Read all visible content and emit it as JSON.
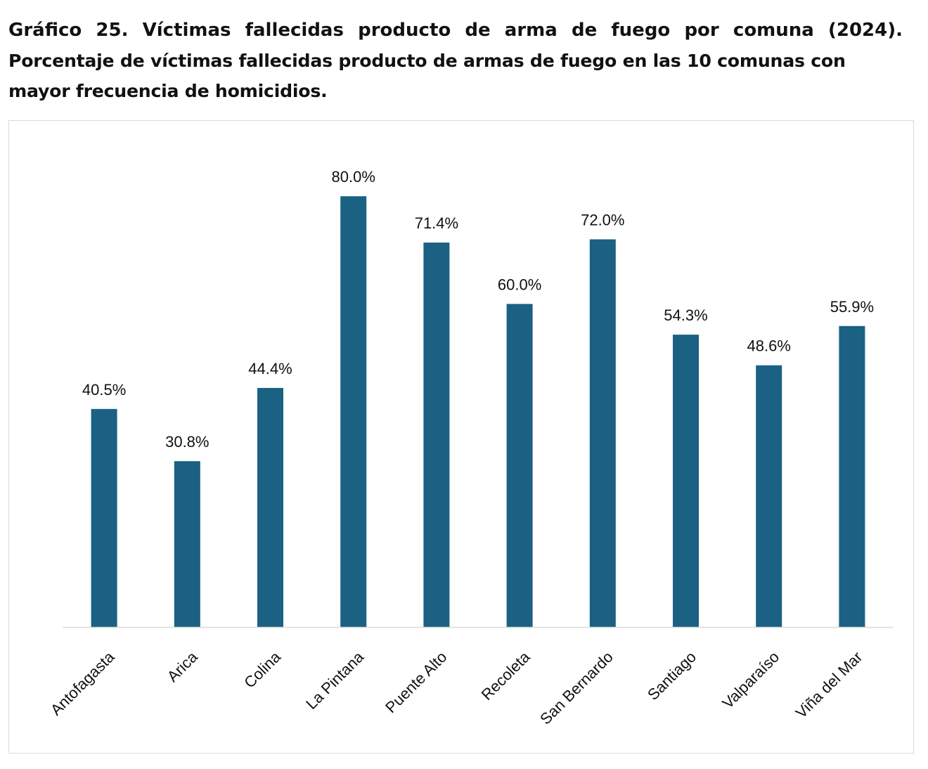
{
  "title": "Gráfico 25. Víctimas fallecidas producto de arma de fuego por comuna (2024).",
  "subtitle": "Porcentaje de víctimas fallecidas producto de armas de fuego en las 10 comunas con mayor frecuencia de homicidios.",
  "chart_data": {
    "type": "bar",
    "title": "",
    "xlabel": "",
    "ylabel": "",
    "categories": [
      "Antofagasta",
      "Arica",
      "Colina",
      "La Pintana",
      "Puente Alto",
      "Recoleta",
      "San Bernardo",
      "Santiago",
      "Valparaíso",
      "Viña del Mar"
    ],
    "values": [
      40.5,
      30.8,
      44.4,
      80.0,
      71.4,
      60.0,
      72.0,
      54.3,
      48.6,
      55.9
    ],
    "data_labels": [
      "40.5%",
      "30.8%",
      "44.4%",
      "80.0%",
      "71.4%",
      "60.0%",
      "72.0%",
      "54.3%",
      "48.6%",
      "55.9%"
    ],
    "unit": "%",
    "ylim": [
      0,
      80
    ],
    "grid": false,
    "legend": "none",
    "bar_color": "#1a6183",
    "axis_color": "#d9d9d9",
    "label_color": "#111111"
  }
}
